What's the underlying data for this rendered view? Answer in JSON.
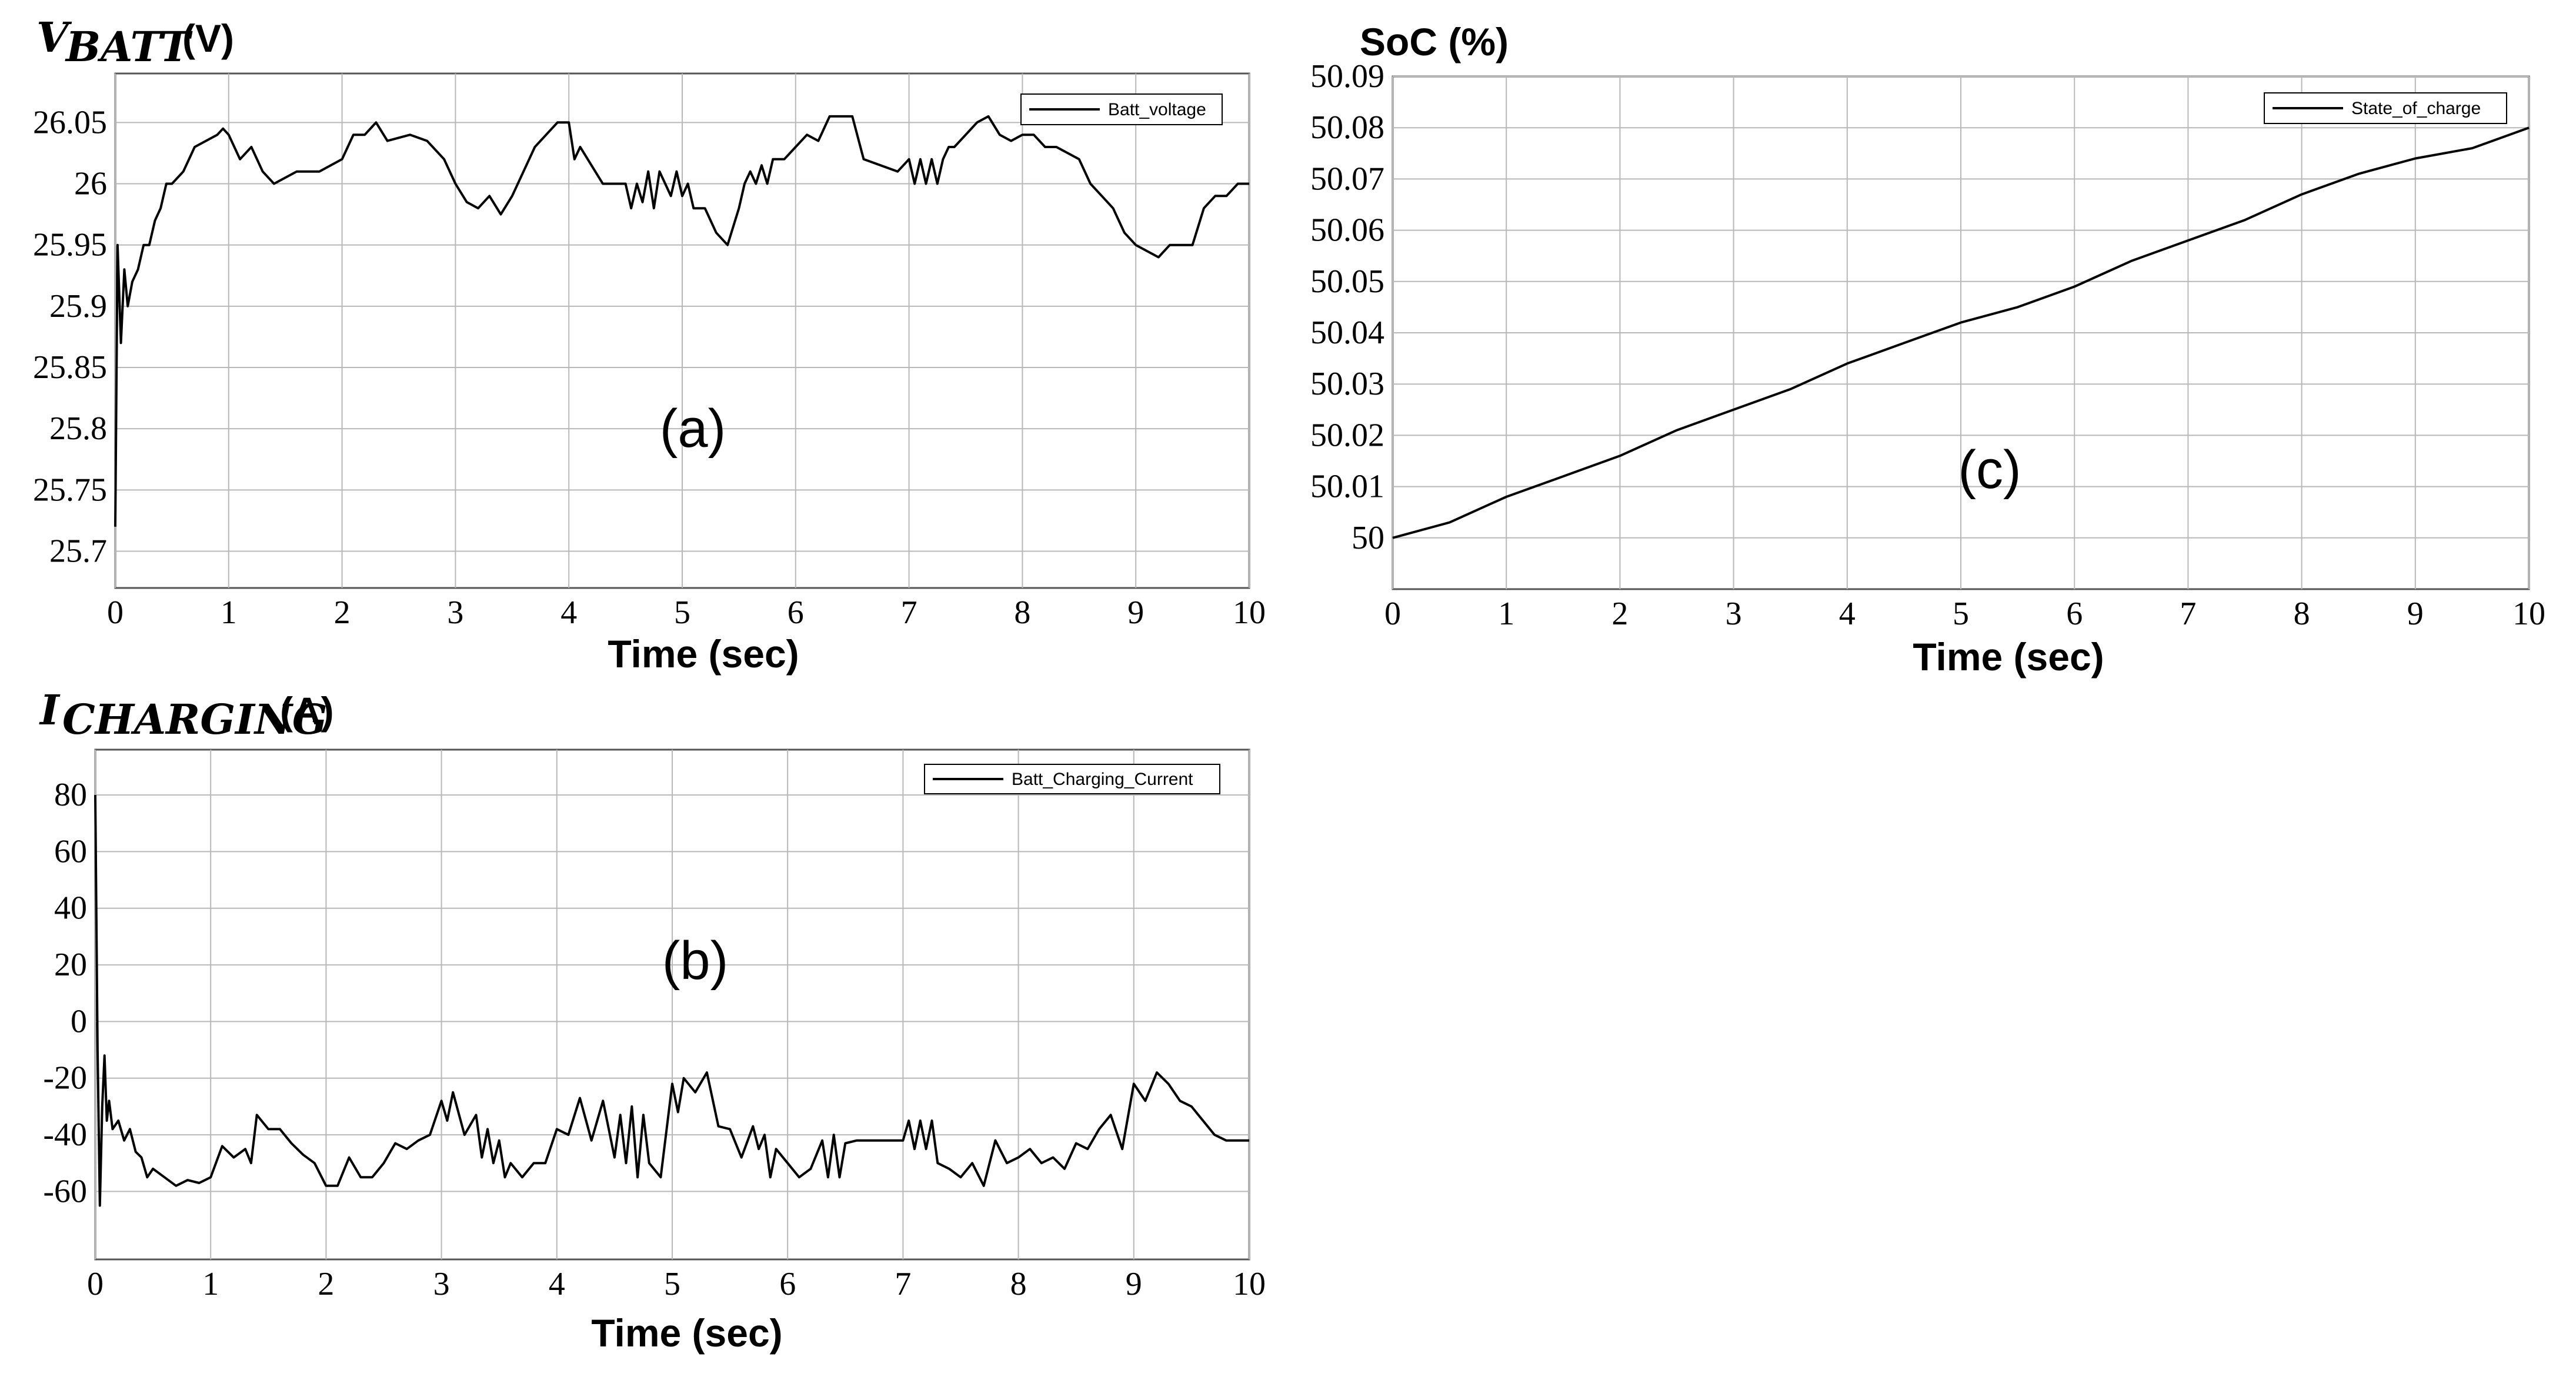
{
  "chart_data": [
    {
      "type": "line",
      "panel": "(a)",
      "ylabel": "V_BATT (V)",
      "ylabel_main": "V",
      "ylabel_sub": "BATT",
      "ylabel_unit": "(V)",
      "xlabel": "Time (sec)",
      "xlim": [
        0,
        10
      ],
      "ylim": [
        25.67,
        26.09
      ],
      "xticks": [
        "0",
        "1",
        "2",
        "3",
        "4",
        "5",
        "6",
        "7",
        "8",
        "9",
        "10"
      ],
      "yticks": [
        "25.7",
        "25.75",
        "25.8",
        "25.85",
        "25.9",
        "25.95",
        "26",
        "26.05"
      ],
      "grid": true,
      "legend_position": "top-right",
      "series": [
        {
          "name": "Batt_voltage",
          "x": [
            0,
            0.02,
            0.05,
            0.08,
            0.11,
            0.15,
            0.2,
            0.25,
            0.3,
            0.35,
            0.4,
            0.45,
            0.5,
            0.6,
            0.7,
            0.8,
            0.9,
            0.95,
            1.0,
            1.1,
            1.2,
            1.3,
            1.4,
            1.5,
            1.6,
            1.8,
            2.0,
            2.1,
            2.2,
            2.3,
            2.4,
            2.6,
            2.75,
            2.9,
            3.0,
            3.1,
            3.2,
            3.3,
            3.4,
            3.5,
            3.6,
            3.7,
            3.8,
            3.9,
            4.0,
            4.05,
            4.1,
            4.3,
            4.5,
            4.55,
            4.6,
            4.65,
            4.7,
            4.75,
            4.8,
            4.85,
            4.9,
            4.95,
            5.0,
            5.05,
            5.1,
            5.2,
            5.3,
            5.4,
            5.5,
            5.55,
            5.6,
            5.65,
            5.7,
            5.75,
            5.8,
            5.9,
            6.0,
            6.1,
            6.2,
            6.3,
            6.5,
            6.6,
            6.9,
            7.0,
            7.05,
            7.1,
            7.15,
            7.2,
            7.25,
            7.3,
            7.35,
            7.4,
            7.5,
            7.6,
            7.7,
            7.8,
            7.9,
            8.0,
            8.1,
            8.2,
            8.3,
            8.5,
            8.6,
            8.7,
            8.8,
            8.9,
            9.0,
            9.1,
            9.2,
            9.3,
            9.5,
            9.6,
            9.7,
            9.8,
            9.9,
            10.0
          ],
          "y": [
            25.72,
            25.95,
            25.87,
            25.93,
            25.9,
            25.92,
            25.93,
            25.95,
            25.95,
            25.97,
            25.98,
            26.0,
            26.0,
            26.01,
            26.03,
            26.035,
            26.04,
            26.045,
            26.04,
            26.02,
            26.03,
            26.01,
            26.0,
            26.005,
            26.01,
            26.01,
            26.02,
            26.04,
            26.04,
            26.05,
            26.035,
            26.04,
            26.035,
            26.02,
            26.0,
            25.985,
            25.98,
            25.99,
            25.975,
            25.99,
            26.01,
            26.03,
            26.04,
            26.05,
            26.05,
            26.02,
            26.03,
            26.0,
            26.0,
            25.98,
            26.0,
            25.985,
            26.01,
            25.98,
            26.01,
            26.0,
            25.99,
            26.01,
            25.99,
            26.0,
            25.98,
            25.98,
            25.96,
            25.95,
            25.98,
            26.0,
            26.01,
            26.0,
            26.015,
            26.0,
            26.02,
            26.02,
            26.03,
            26.04,
            26.035,
            26.055,
            26.055,
            26.02,
            26.01,
            26.02,
            26.0,
            26.02,
            26.0,
            26.02,
            26.0,
            26.02,
            26.03,
            26.03,
            26.04,
            26.05,
            26.055,
            26.04,
            26.035,
            26.04,
            26.04,
            26.03,
            26.03,
            26.02,
            26.0,
            25.99,
            25.98,
            25.96,
            25.95,
            25.945,
            25.94,
            25.95,
            25.95,
            25.98,
            25.99,
            25.99,
            26.0,
            26.0
          ]
        }
      ]
    },
    {
      "type": "line",
      "panel": "(b)",
      "ylabel": "I_CHARGING (A)",
      "ylabel_main": "I",
      "ylabel_sub": "CHARGING",
      "ylabel_unit": "(A)",
      "xlabel": "Time (sec)",
      "xlim": [
        0,
        10
      ],
      "ylim": [
        -84,
        96
      ],
      "xticks": [
        "0",
        "1",
        "2",
        "3",
        "4",
        "5",
        "6",
        "7",
        "8",
        "9",
        "10"
      ],
      "yticks": [
        "-60",
        "-40",
        "-20",
        "0",
        "20",
        "40",
        "60",
        "80"
      ],
      "grid": true,
      "legend_position": "top-right",
      "series": [
        {
          "name": "Batt_Charging_Current",
          "x": [
            0,
            0.02,
            0.04,
            0.06,
            0.08,
            0.1,
            0.12,
            0.15,
            0.2,
            0.25,
            0.3,
            0.35,
            0.4,
            0.45,
            0.5,
            0.6,
            0.7,
            0.8,
            0.9,
            1.0,
            1.1,
            1.2,
            1.3,
            1.35,
            1.4,
            1.5,
            1.6,
            1.7,
            1.8,
            1.9,
            2.0,
            2.1,
            2.2,
            2.3,
            2.4,
            2.5,
            2.6,
            2.7,
            2.8,
            2.9,
            3.0,
            3.05,
            3.1,
            3.2,
            3.3,
            3.35,
            3.4,
            3.45,
            3.5,
            3.55,
            3.6,
            3.7,
            3.8,
            3.9,
            4.0,
            4.1,
            4.2,
            4.3,
            4.4,
            4.5,
            4.55,
            4.6,
            4.65,
            4.7,
            4.75,
            4.8,
            4.9,
            5.0,
            5.05,
            5.1,
            5.2,
            5.3,
            5.4,
            5.5,
            5.6,
            5.7,
            5.75,
            5.8,
            5.85,
            5.9,
            6.0,
            6.1,
            6.2,
            6.3,
            6.35,
            6.4,
            6.45,
            6.5,
            6.6,
            6.7,
            6.8,
            7.0,
            7.05,
            7.1,
            7.15,
            7.2,
            7.25,
            7.3,
            7.4,
            7.5,
            7.6,
            7.7,
            7.8,
            7.9,
            8.0,
            8.1,
            8.2,
            8.3,
            8.4,
            8.5,
            8.6,
            8.7,
            8.8,
            8.9,
            9.0,
            9.1,
            9.2,
            9.3,
            9.4,
            9.5,
            9.6,
            9.7,
            9.8,
            9.9,
            10.0
          ],
          "y": [
            80,
            -10,
            -65,
            -30,
            -12,
            -35,
            -28,
            -38,
            -35,
            -42,
            -38,
            -46,
            -48,
            -55,
            -52,
            -55,
            -58,
            -56,
            -57,
            -55,
            -44,
            -48,
            -45,
            -50,
            -33,
            -38,
            -38,
            -43,
            -47,
            -50,
            -58,
            -58,
            -48,
            -55,
            -55,
            -50,
            -43,
            -45,
            -42,
            -40,
            -28,
            -35,
            -25,
            -40,
            -33,
            -48,
            -38,
            -50,
            -42,
            -55,
            -50,
            -55,
            -50,
            -50,
            -38,
            -40,
            -27,
            -42,
            -28,
            -48,
            -33,
            -50,
            -30,
            -55,
            -33,
            -50,
            -55,
            -22,
            -32,
            -20,
            -25,
            -18,
            -37,
            -38,
            -48,
            -37,
            -45,
            -40,
            -55,
            -45,
            -50,
            -55,
            -52,
            -42,
            -55,
            -40,
            -55,
            -43,
            -42,
            -42,
            -42,
            -42,
            -35,
            -45,
            -35,
            -45,
            -35,
            -50,
            -52,
            -55,
            -50,
            -58,
            -42,
            -50,
            -48,
            -45,
            -50,
            -48,
            -52,
            -43,
            -45,
            -38,
            -33,
            -45,
            -22,
            -28,
            -18,
            -22,
            -28,
            -30,
            -35,
            -40,
            -42,
            -42,
            -42
          ]
        }
      ]
    },
    {
      "type": "line",
      "panel": "(c)",
      "ylabel": "SoC (%)",
      "xlabel": "Time (sec)",
      "xlim": [
        0,
        10
      ],
      "ylim": [
        49.99,
        50.09
      ],
      "xticks": [
        "0",
        "1",
        "2",
        "3",
        "4",
        "5",
        "6",
        "7",
        "8",
        "9",
        "10"
      ],
      "yticks": [
        "50",
        "50.01",
        "50.02",
        "50.03",
        "50.04",
        "50.05",
        "50.06",
        "50.07",
        "50.08",
        "50.09"
      ],
      "grid": true,
      "legend_position": "top-right",
      "series": [
        {
          "name": "State_of_charge",
          "x": [
            0,
            0.5,
            1,
            1.5,
            2,
            2.5,
            3,
            3.5,
            4,
            4.5,
            5,
            5.5,
            6,
            6.5,
            7,
            7.5,
            8,
            8.5,
            9,
            9.5,
            10
          ],
          "y": [
            50.0,
            50.003,
            50.008,
            50.012,
            50.016,
            50.021,
            50.025,
            50.029,
            50.034,
            50.038,
            50.042,
            50.045,
            50.049,
            50.054,
            50.058,
            50.062,
            50.067,
            50.071,
            50.074,
            50.076,
            50.08
          ]
        }
      ]
    }
  ]
}
